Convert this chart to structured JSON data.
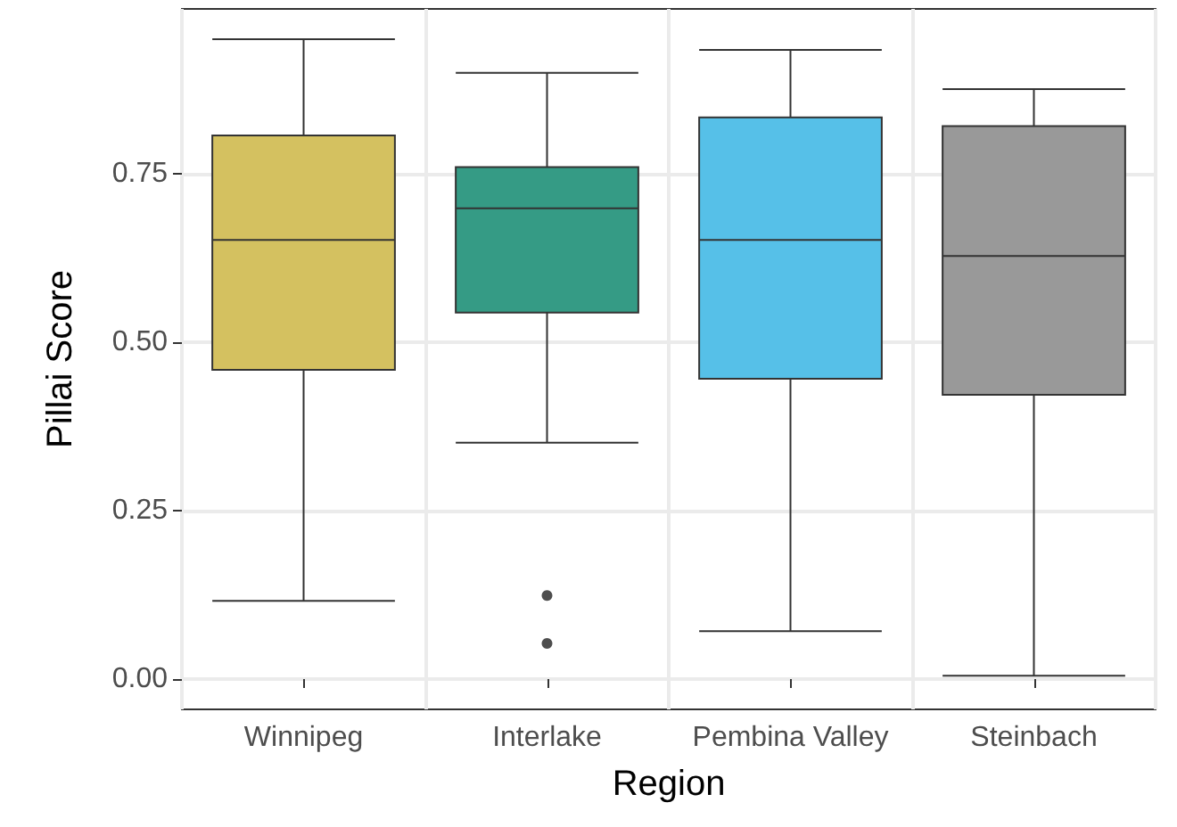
{
  "chart_data": {
    "type": "box",
    "xlabel": "Region",
    "ylabel": "Pillai Score",
    "categories": [
      "Winnipeg",
      "Interlake",
      "Pembina Valley",
      "Steinbach"
    ],
    "boxes": [
      {
        "low": 0.116,
        "q1": 0.459,
        "median": 0.652,
        "q3": 0.807,
        "high": 0.95
      },
      {
        "low": 0.351,
        "q1": 0.544,
        "median": 0.699,
        "q3": 0.76,
        "high": 0.9,
        "outliers": [
          0.124,
          0.053
        ]
      },
      {
        "low": 0.071,
        "q1": 0.446,
        "median": 0.652,
        "q3": 0.834,
        "high": 0.934
      },
      {
        "low": 0.005,
        "q1": 0.422,
        "median": 0.628,
        "q3": 0.821,
        "high": 0.876
      }
    ],
    "colors": [
      "#d4c160",
      "#359b85",
      "#56c0e8",
      "#999999"
    ],
    "ylim": [
      -0.045,
      0.995
    ],
    "yticks": [
      {
        "value": 0,
        "label": "0.00"
      },
      {
        "value": 0.25,
        "label": "0.25"
      },
      {
        "value": 0.5,
        "label": "0.50"
      },
      {
        "value": 0.75,
        "label": "0.75"
      }
    ],
    "grid": true
  }
}
